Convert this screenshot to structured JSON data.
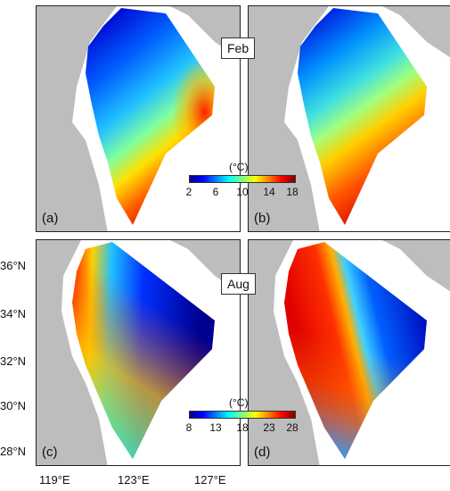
{
  "months": {
    "top": "Feb",
    "bottom": "Aug"
  },
  "panels": [
    {
      "label": "(a)",
      "theme": "feb-model"
    },
    {
      "label": "(b)",
      "theme": "feb-sat"
    },
    {
      "label": "(c)",
      "theme": "aug-model"
    },
    {
      "label": "(d)",
      "theme": "aug-sat"
    }
  ],
  "colorbars": {
    "feb": {
      "unit": "(°C)",
      "ticks": [
        "2",
        "6",
        "10",
        "14",
        "18"
      ]
    },
    "aug": {
      "unit": "(°C)",
      "ticks": [
        "8",
        "13",
        "18",
        "23",
        "28"
      ]
    }
  },
  "axes": {
    "lat_labels": [
      "36°N",
      "34°N",
      "32°N",
      "30°N",
      "28°N"
    ],
    "lon_labels": [
      "119°E",
      "123°E",
      "127°E"
    ]
  },
  "colors": {
    "land": "#bdbdbd",
    "jet": [
      "#00008f",
      "#0000ff",
      "#0080ff",
      "#00ffff",
      "#80ff80",
      "#ffff00",
      "#ff8000",
      "#ff0000",
      "#800000"
    ]
  }
}
